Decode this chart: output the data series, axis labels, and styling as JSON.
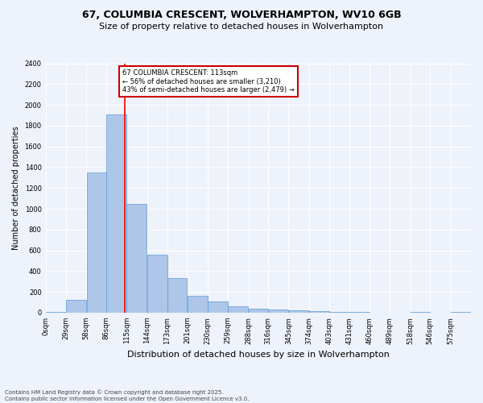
{
  "title": "67, COLUMBIA CRESCENT, WOLVERHAMPTON, WV10 6GB",
  "subtitle": "Size of property relative to detached houses in Wolverhampton",
  "xlabel": "Distribution of detached houses by size in Wolverhampton",
  "ylabel": "Number of detached properties",
  "bins": [
    "0sqm",
    "29sqm",
    "58sqm",
    "86sqm",
    "115sqm",
    "144sqm",
    "173sqm",
    "201sqm",
    "230sqm",
    "259sqm",
    "288sqm",
    "316sqm",
    "345sqm",
    "374sqm",
    "403sqm",
    "431sqm",
    "460sqm",
    "489sqm",
    "518sqm",
    "546sqm",
    "575sqm"
  ],
  "bin_edges": [
    0,
    29,
    58,
    86,
    115,
    144,
    173,
    201,
    230,
    259,
    288,
    316,
    345,
    374,
    403,
    431,
    460,
    489,
    518,
    546,
    575
  ],
  "values": [
    10,
    120,
    1350,
    1910,
    1050,
    560,
    335,
    165,
    110,
    60,
    35,
    30,
    25,
    15,
    5,
    5,
    2,
    2,
    5,
    2,
    10
  ],
  "bar_color": "#aec6e8",
  "bar_edge_color": "#5b9bd5",
  "background_color": "#eef2fa",
  "grid_color": "#ffffff",
  "red_line_x": 113,
  "annotation_title": "67 COLUMBIA CRESCENT: 113sqm",
  "annotation_line1": "← 56% of detached houses are smaller (3,210)",
  "annotation_line2": "43% of semi-detached houses are larger (2,479) →",
  "annotation_box_color": "#ffffff",
  "annotation_border_color": "#cc0000",
  "footer_line1": "Contains HM Land Registry data © Crown copyright and database right 2025.",
  "footer_line2": "Contains public sector information licensed under the Open Government Licence v3.0.",
  "ylim": [
    0,
    2400
  ],
  "yticks": [
    0,
    200,
    400,
    600,
    800,
    1000,
    1200,
    1400,
    1600,
    1800,
    2000,
    2200,
    2400
  ],
  "title_fontsize": 9,
  "subtitle_fontsize": 8,
  "ylabel_fontsize": 7,
  "xlabel_fontsize": 8,
  "tick_fontsize": 6,
  "footer_fontsize": 5
}
